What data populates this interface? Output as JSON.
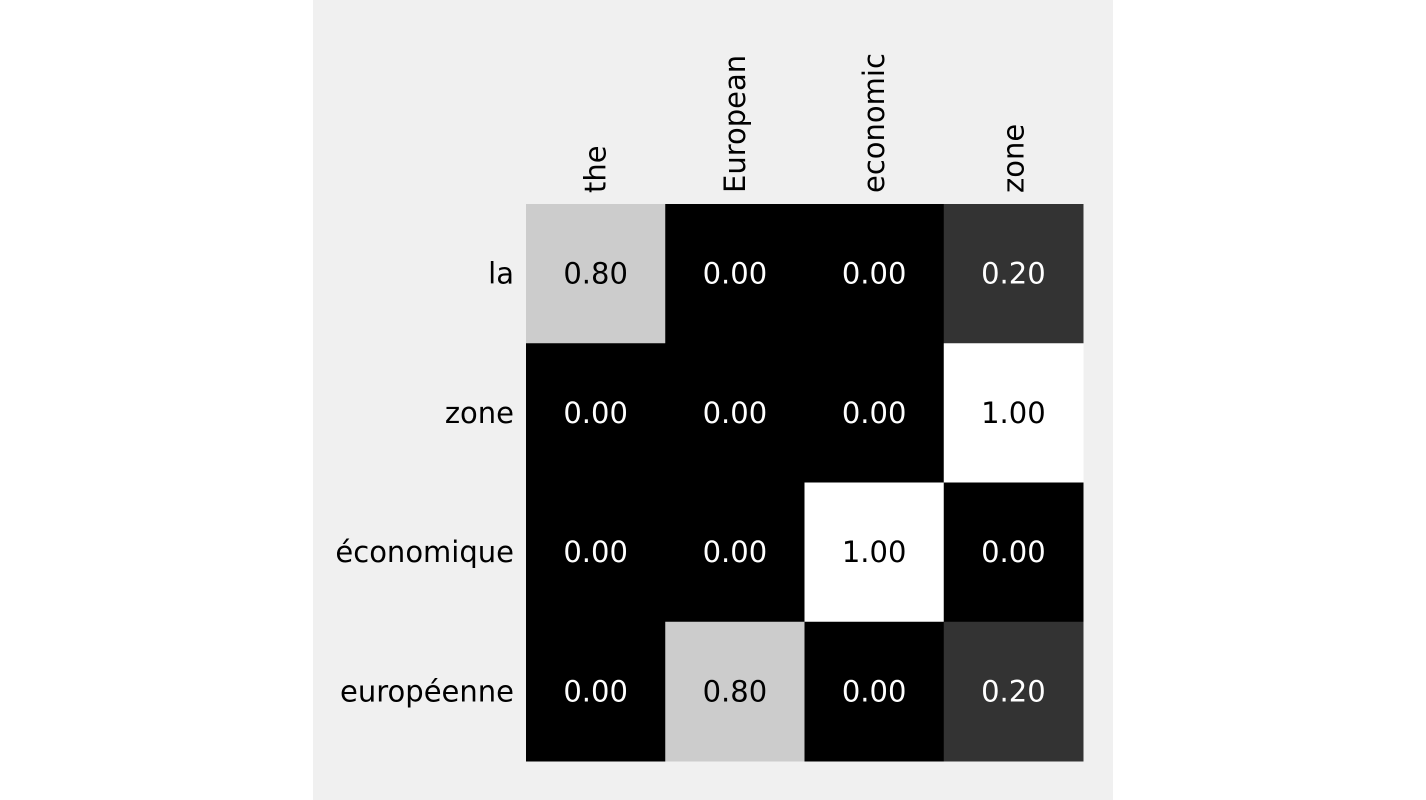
{
  "chart_data": {
    "type": "heatmap",
    "title": "",
    "xlabel": "",
    "ylabel": "",
    "columns": [
      "the",
      "European",
      "economic",
      "zone"
    ],
    "rows": [
      "la",
      "zone",
      "économique",
      "européenne"
    ],
    "values": [
      [
        0.8,
        0.0,
        0.0,
        0.2
      ],
      [
        0.0,
        0.0,
        0.0,
        1.0
      ],
      [
        0.0,
        0.0,
        1.0,
        0.0
      ],
      [
        0.0,
        0.8,
        0.0,
        0.2
      ]
    ],
    "value_format": "2 decimals",
    "colormap": "gray",
    "vmin": 0,
    "vmax": 1,
    "column_labels_position": "top",
    "column_labels_rotation": "vertical",
    "grid": false,
    "background_color": "#f0f0f0"
  }
}
